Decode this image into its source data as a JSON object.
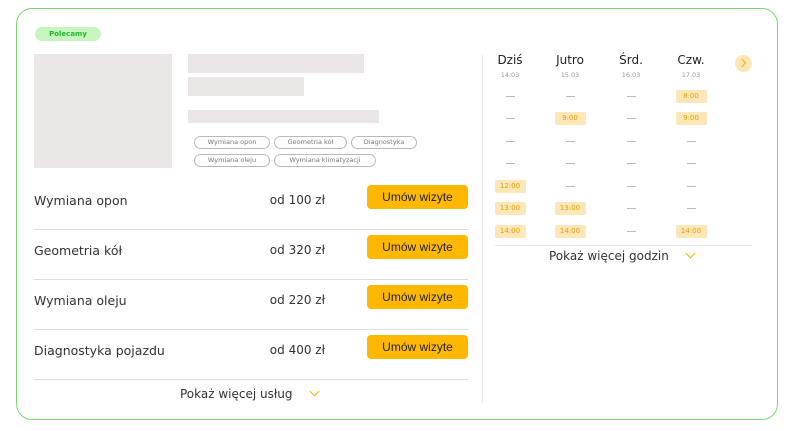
{
  "badge": "Polecamy",
  "tags": [
    "Wymiana opon",
    "Geometria kół",
    "Diagnostyka",
    "Wymiana oleju",
    "Wymiana klimatyzacji"
  ],
  "services": [
    {
      "name": "Wymiana opon",
      "price": "od 100 zł",
      "button": "Umów wizyte"
    },
    {
      "name": "Geometria kół",
      "price": "od 320 zł",
      "button": "Umów wizyte"
    },
    {
      "name": "Wymiana oleju",
      "price": "od 220 zł",
      "button": "Umów wizyte"
    },
    {
      "name": "Diagnostyka pojazdu",
      "price": "od 400 zł",
      "button": "Umów wizyte"
    }
  ],
  "more_services": "Pokaż więcej usług",
  "calendar": {
    "days": [
      {
        "day": "Dziś",
        "date": "14.03",
        "slots": [
          "",
          "",
          "",
          "",
          "12:00",
          "13:00",
          "14:00"
        ]
      },
      {
        "day": "Jutro",
        "date": "15.03",
        "slots": [
          "",
          "9:00",
          "",
          "",
          "",
          "13:00",
          "14:00"
        ]
      },
      {
        "day": "Śrd.",
        "date": "16.03",
        "slots": [
          "",
          "",
          "",
          "",
          "",
          "",
          ""
        ]
      },
      {
        "day": "Czw.",
        "date": "17.03",
        "slots": [
          "8:00",
          "9:00",
          "",
          "",
          "",
          "",
          "14:00"
        ]
      }
    ],
    "more_hours": "Pokaż więcej godzin"
  },
  "colors": {
    "accent": "#ffb800",
    "slot_bg": "#fde7b8",
    "badge_bg": "#c6f5c0",
    "border": "#7bd66f"
  }
}
